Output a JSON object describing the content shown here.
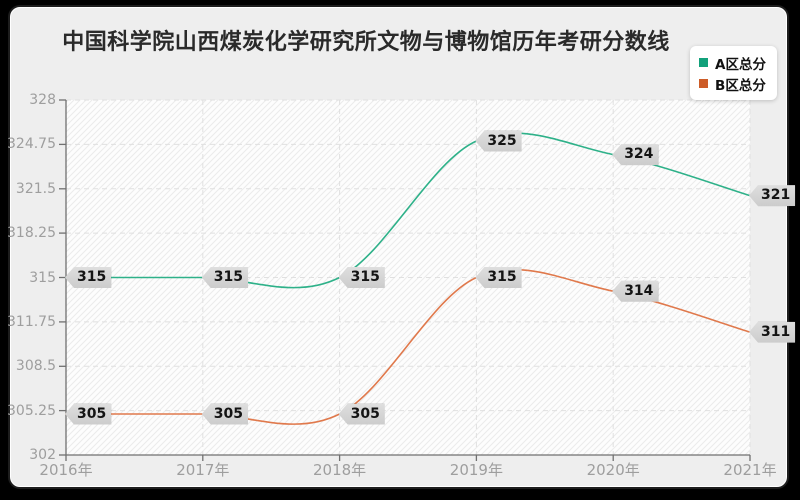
{
  "title": "中国科学院山西煤炭化学研究所文物与博物馆历年考研分数线",
  "legend": {
    "items": [
      {
        "label": "A区总分",
        "color": "#12a17b"
      },
      {
        "label": "B区总分",
        "color": "#cd5c28"
      }
    ]
  },
  "style": {
    "outer_background": "#000000",
    "card_background": "#eeeeee",
    "plot_background": "#fdfdfd",
    "hatch_color": "#ebebeb",
    "grid_color": "#e0e0e0",
    "axis_color": "#707070",
    "tick_label_color": "#9e9e9e",
    "badge_background": "#d6d6d6",
    "series_a_color": "#2eb189",
    "series_b_color": "#e0794c"
  },
  "chart_data": {
    "type": "line",
    "smooth": true,
    "title": "中国科学院山西煤炭化学研究所文物与博物馆历年考研分数线",
    "xlabel": "",
    "ylabel": "",
    "categories": [
      "2016年",
      "2017年",
      "2018年",
      "2019年",
      "2020年",
      "2021年"
    ],
    "series": [
      {
        "name": "A区总分",
        "color": "#2eb189",
        "marker_color": "#12a17b",
        "values": [
          315,
          315,
          315,
          325,
          324,
          321
        ]
      },
      {
        "name": "B区总分",
        "color": "#e0794c",
        "marker_color": "#cd5c28",
        "values": [
          305,
          305,
          305,
          315,
          314,
          311
        ]
      }
    ],
    "ylim": [
      302,
      328
    ],
    "y_ticks": [
      "302",
      "305.25",
      "308.5",
      "311.75",
      "315",
      "318.25",
      "321.5",
      "324.75",
      "328"
    ],
    "grid": true,
    "grid_style": "dashed",
    "legend_position": "top-right",
    "data_labels": true
  }
}
